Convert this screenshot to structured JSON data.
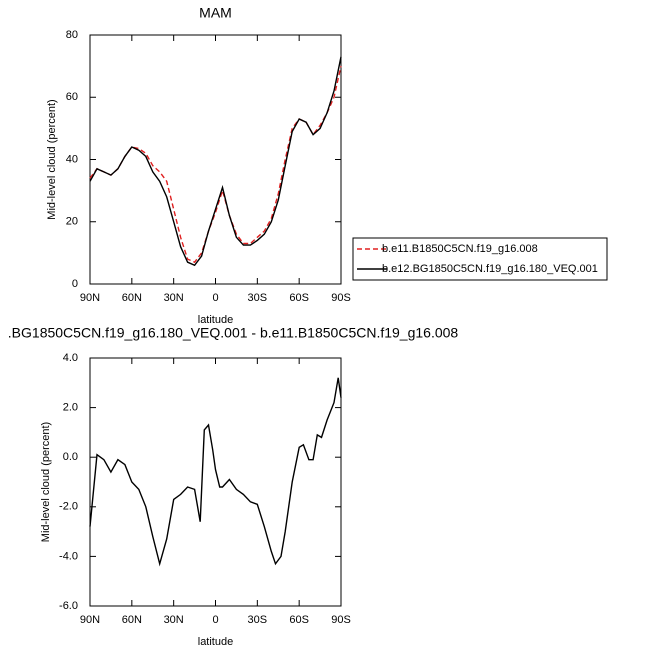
{
  "chart_data": [
    {
      "type": "line",
      "title": "MAM",
      "xlabel": "latitude",
      "ylabel": "Mid-level cloud (percent)",
      "x": [
        90,
        85,
        80,
        75,
        70,
        65,
        60,
        55,
        50,
        45,
        40,
        35,
        30,
        25,
        20,
        15,
        10,
        5,
        0,
        -5,
        -10,
        -15,
        -20,
        -25,
        -30,
        -35,
        -40,
        -45,
        -50,
        -55,
        -60,
        -65,
        -70,
        -75,
        -80,
        -85,
        -90
      ],
      "xlim": [
        90,
        -90
      ],
      "xticks": [
        {
          "value": 90,
          "label": "90N"
        },
        {
          "value": 60,
          "label": "60N"
        },
        {
          "value": 30,
          "label": "30N"
        },
        0,
        {
          "value": -30,
          "label": "30S"
        },
        {
          "value": -60,
          "label": "60S"
        },
        {
          "value": -90,
          "label": "90S"
        }
      ],
      "ylim": [
        0,
        80
      ],
      "yticks": [
        0,
        20,
        40,
        60,
        80
      ],
      "series": [
        {
          "name": "b.e11.B1850C5CN.f19_g16.008",
          "color": "#e02020",
          "dash": true,
          "values": [
            34,
            37,
            36,
            35,
            37,
            41,
            44,
            43.5,
            42,
            38,
            36,
            33,
            24,
            15,
            8,
            7,
            10,
            17,
            23,
            30,
            22,
            16,
            13,
            13,
            15,
            17,
            21,
            29,
            40,
            50,
            53,
            52,
            48,
            51,
            55,
            60,
            70
          ]
        },
        {
          "name": "b.e12.BG1850C5CN.f19_g16.180_VEQ.001",
          "color": "#000000",
          "dash": false,
          "values": [
            33,
            37,
            36,
            35,
            37,
            41,
            44,
            43,
            41,
            36,
            33,
            28,
            20,
            12,
            7,
            6,
            9,
            17,
            24,
            31,
            22,
            15,
            12.5,
            12.5,
            14,
            16,
            20,
            27,
            38,
            49,
            53,
            52,
            48,
            50,
            55,
            62,
            73
          ]
        }
      ]
    },
    {
      "type": "line",
      "title": ".BG1850C5CN.f19_g16.180_VEQ.001 - b.e11.B1850C5CN.f19_g16.008",
      "xlabel": "latitude",
      "ylabel": "Mid-level cloud (percent)",
      "x": [
        90,
        85,
        80,
        75,
        70,
        65,
        60,
        55,
        50,
        45,
        40,
        35,
        30,
        25,
        20,
        15,
        11,
        8,
        5,
        2,
        0,
        -3,
        -5,
        -10,
        -15,
        -20,
        -25,
        -30,
        -35,
        -40,
        -43,
        -47,
        -50,
        -55,
        -60,
        -63,
        -67,
        -70,
        -73,
        -76,
        -80,
        -85,
        -88,
        -90
      ],
      "xlim": [
        90,
        -90
      ],
      "xticks": [
        {
          "value": 90,
          "label": "90N"
        },
        {
          "value": 60,
          "label": "60N"
        },
        {
          "value": 30,
          "label": "30N"
        },
        0,
        {
          "value": -30,
          "label": "30S"
        },
        {
          "value": -60,
          "label": "60S"
        },
        {
          "value": -90,
          "label": "90S"
        }
      ],
      "ylim": [
        -6,
        4
      ],
      "yticks": [
        {
          "value": -6,
          "label": "-6.0"
        },
        {
          "value": -4,
          "label": "-4.0"
        },
        {
          "value": -2,
          "label": "-2.0"
        },
        {
          "value": 0,
          "label": "0.0"
        },
        {
          "value": 2,
          "label": "2.0"
        },
        {
          "value": 4,
          "label": "4.0"
        }
      ],
      "series": [
        {
          "color": "#000000",
          "dash": false,
          "values": [
            -2.8,
            0.1,
            -0.1,
            -0.6,
            -0.1,
            -0.3,
            -1.0,
            -1.3,
            -2.0,
            -3.2,
            -4.3,
            -3.3,
            -1.7,
            -1.5,
            -1.2,
            -1.3,
            -2.6,
            1.1,
            1.3,
            0.3,
            -0.5,
            -1.2,
            -1.2,
            -0.9,
            -1.3,
            -1.5,
            -1.8,
            -1.9,
            -2.8,
            -3.8,
            -4.3,
            -4.0,
            -3.0,
            -1.0,
            0.4,
            0.5,
            -0.1,
            -0.1,
            0.9,
            0.8,
            1.5,
            2.2,
            3.2,
            2.4
          ]
        }
      ]
    }
  ]
}
